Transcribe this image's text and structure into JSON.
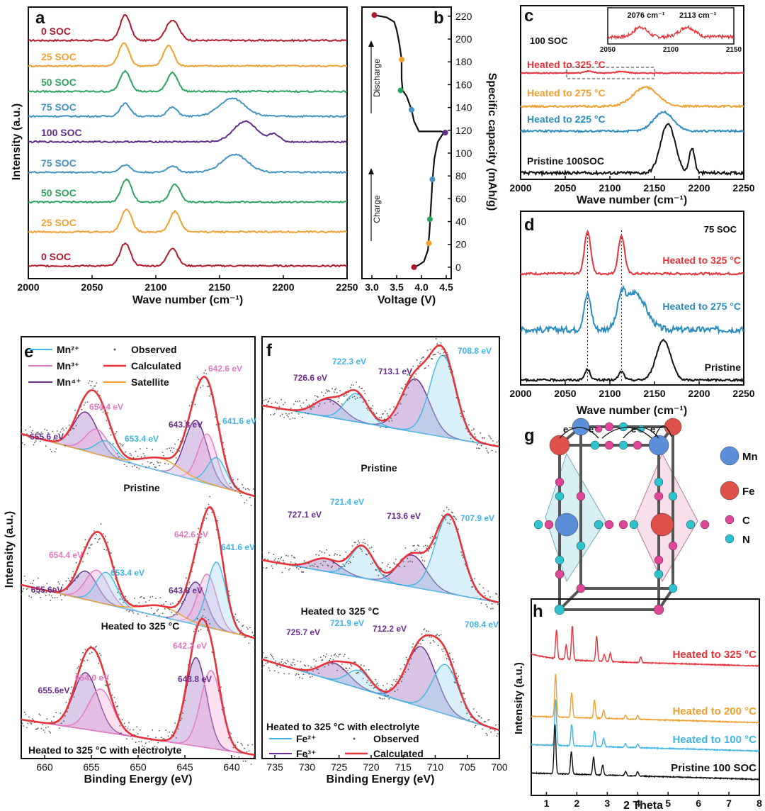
{
  "figure": {
    "panel_letters": [
      "a",
      "b",
      "c",
      "d",
      "e",
      "f",
      "g",
      "h"
    ]
  },
  "chart_data": [
    {
      "panel": "a",
      "type": "line",
      "xlabel": "Wave number (cm⁻¹)",
      "ylabel": "Intensity (a.u.)",
      "xlim": [
        2000,
        2250
      ],
      "xticks": [
        "2000",
        "2050",
        "2100",
        "2150",
        "2200",
        "2250"
      ],
      "series": [
        {
          "name": "0 SOC",
          "color": "#b2182b",
          "peaks": [
            [
              2076,
              1.0,
              4
            ],
            [
              2113,
              0.8,
              5
            ]
          ]
        },
        {
          "name": "25 SOC",
          "color": "#f0a030",
          "peaks": [
            [
              2075,
              0.9,
              4
            ],
            [
              2110,
              0.8,
              4
            ]
          ]
        },
        {
          "name": "50 SOC",
          "color": "#2ca25f",
          "peaks": [
            [
              2076,
              0.8,
              4
            ],
            [
              2113,
              0.75,
              4
            ]
          ]
        },
        {
          "name": "75 SOC",
          "color": "#4393c3",
          "peaks": [
            [
              2076,
              0.5,
              4
            ],
            [
              2113,
              0.35,
              4
            ],
            [
              2160,
              0.7,
              10
            ]
          ]
        },
        {
          "name": "100 SOC",
          "color": "#5e2e8a",
          "peaks": [
            [
              2170,
              0.8,
              9
            ],
            [
              2193,
              0.3,
              4
            ]
          ]
        },
        {
          "name": "75 SOC",
          "color": "#4393c3",
          "peaks": [
            [
              2076,
              0.3,
              4
            ],
            [
              2113,
              0.25,
              4
            ],
            [
              2162,
              0.7,
              10
            ]
          ]
        },
        {
          "name": "50 SOC",
          "color": "#2ca25f",
          "peaks": [
            [
              2077,
              0.9,
              4
            ],
            [
              2115,
              0.7,
              4
            ]
          ]
        },
        {
          "name": "25 SOC",
          "color": "#f0a030",
          "peaks": [
            [
              2077,
              0.9,
              4
            ],
            [
              2115,
              0.8,
              4
            ]
          ]
        },
        {
          "name": "0 SOC",
          "color": "#b2182b",
          "peaks": [
            [
              2076,
              0.9,
              4
            ],
            [
              2113,
              0.7,
              4
            ]
          ]
        }
      ]
    },
    {
      "panel": "b",
      "type": "line",
      "xlabel": "Voltage (V)",
      "ylabel": "Specific capacity (mAh/g)",
      "xlim": [
        2.8,
        4.6
      ],
      "ylim": [
        -10,
        228
      ],
      "xticks": [
        "3.0",
        "3.5",
        "4.0",
        "4.5"
      ],
      "yticks": [
        "0",
        "20",
        "40",
        "60",
        "80",
        "100",
        "120",
        "140",
        "160",
        "180",
        "200",
        "220"
      ],
      "annotations": [
        "Discharge",
        "Charge"
      ],
      "curve": [
        [
          3.85,
          0
        ],
        [
          3.95,
          2
        ],
        [
          4.05,
          5
        ],
        [
          4.13,
          15
        ],
        [
          4.16,
          30
        ],
        [
          4.18,
          45
        ],
        [
          4.2,
          60
        ],
        [
          4.22,
          75
        ],
        [
          4.26,
          95
        ],
        [
          4.33,
          110
        ],
        [
          4.45,
          118
        ],
        [
          4.4,
          119
        ],
        [
          4.2,
          119
        ],
        [
          3.95,
          119
        ],
        [
          3.85,
          128
        ],
        [
          3.8,
          138
        ],
        [
          3.7,
          150
        ],
        [
          3.62,
          155
        ],
        [
          3.6,
          165
        ],
        [
          3.6,
          182
        ],
        [
          3.55,
          197
        ],
        [
          3.5,
          208
        ],
        [
          3.45,
          215
        ],
        [
          3.3,
          219
        ],
        [
          3.05,
          221
        ]
      ],
      "markers": [
        {
          "v": 3.85,
          "c": 0,
          "color": "#b2182b"
        },
        {
          "v": 4.15,
          "c": 21,
          "color": "#f0a030"
        },
        {
          "v": 4.17,
          "c": 42,
          "color": "#2ca25f"
        },
        {
          "v": 4.22,
          "c": 77,
          "color": "#4393c3"
        },
        {
          "v": 4.48,
          "c": 118,
          "color": "#5e2e8a"
        },
        {
          "v": 3.8,
          "c": 138,
          "color": "#4393c3"
        },
        {
          "v": 3.58,
          "c": 155,
          "color": "#2ca25f"
        },
        {
          "v": 3.6,
          "c": 182,
          "color": "#f0a030"
        },
        {
          "v": 3.05,
          "c": 221,
          "color": "#b2182b"
        }
      ]
    },
    {
      "panel": "c",
      "type": "line",
      "title": "100 SOC",
      "xlabel": "Wave number (cm⁻¹)",
      "xlim": [
        2000,
        2250
      ],
      "xticks": [
        "2000",
        "2050",
        "2100",
        "2150",
        "2200",
        "2250"
      ],
      "series": [
        {
          "name": "Heated to 325 °C",
          "color": "#e6333a",
          "peaks": [
            [
              2076,
              0.12,
              5
            ],
            [
              2113,
              0.1,
              6
            ]
          ]
        },
        {
          "name": "Heated to 275 °C",
          "color": "#f0a030",
          "peaks": [
            [
              2140,
              0.6,
              14
            ]
          ]
        },
        {
          "name": "Heated to 225 °C",
          "color": "#2b8cbe",
          "peaks": [
            [
              2160,
              0.6,
              11
            ]
          ]
        },
        {
          "name": "Pristine 100SOC",
          "color": "#111111",
          "peaks": [
            [
              2165,
              1.0,
              8
            ],
            [
              2192,
              0.5,
              3
            ]
          ]
        }
      ],
      "inset": {
        "xticks": [
          "2050",
          "2100",
          "2150"
        ],
        "labels": [
          "2076 cm⁻¹",
          "2113 cm⁻¹"
        ]
      }
    },
    {
      "panel": "d",
      "type": "line",
      "title": "75 SOC",
      "xlabel": "Wave number (cm⁻¹)",
      "xlim": [
        2000,
        2250
      ],
      "xticks": [
        "2000",
        "2050",
        "2100",
        "2150",
        "2200",
        "2250"
      ],
      "series": [
        {
          "name": "Heated to 325 °C",
          "color": "#e6333a",
          "peaks": [
            [
              2075,
              1.0,
              3.5
            ],
            [
              2113,
              0.9,
              3.5
            ]
          ]
        },
        {
          "name": "Heated to 275 °C",
          "color": "#2b8cbe",
          "peaks": [
            [
              2075,
              0.7,
              4
            ],
            [
              2113,
              0.45,
              4
            ],
            [
              2128,
              0.75,
              12
            ]
          ]
        },
        {
          "name": "Pristine",
          "color": "#111111",
          "peaks": [
            [
              2075,
              0.25,
              3
            ],
            [
              2113,
              0.2,
              3
            ],
            [
              2160,
              0.95,
              8
            ]
          ]
        }
      ]
    },
    {
      "panel": "e",
      "type": "line",
      "xlabel": "Binding Energy (eV)",
      "ylabel": "Intensity (a.u.)",
      "xlim": [
        662.5,
        637.5
      ],
      "xticks": [
        "660",
        "655",
        "650",
        "645",
        "640"
      ],
      "legend": [
        "Mn²⁺",
        "Mn³⁺",
        "Mn⁴⁺",
        "Observed",
        "Calculated",
        "Satellite"
      ],
      "spectra": [
        {
          "name": "Pristine",
          "labels": [
            "655.6 eV",
            "654.4 eV",
            "653.4 eV",
            "643.8 eV",
            "642.6 eV",
            "641.6 eV"
          ]
        },
        {
          "name": "Heated to 325 °C",
          "labels": [
            "655.6eV",
            "654.4 eV",
            "653.4 eV",
            "643.8 eV",
            "642.6 eV",
            "641.6 eV"
          ]
        },
        {
          "name": "Heated to 325 °C with electrolyte",
          "labels": [
            "655.6eV",
            "654.0 eV",
            "643.8 eV",
            "642.2 eV"
          ]
        }
      ]
    },
    {
      "panel": "f",
      "type": "line",
      "xlabel": "Binding Energy (eV)",
      "xlim": [
        737,
        700
      ],
      "xticks": [
        "735",
        "730",
        "725",
        "720",
        "715",
        "710",
        "705",
        "700"
      ],
      "legend": [
        "Fe²⁺",
        "Fe³⁺",
        "Observed",
        "Calculated"
      ],
      "legend_title": "Heated to 325 °C with electrolyte",
      "spectra": [
        {
          "name": "Pristine",
          "labels": [
            "726.6 eV",
            "722.3 eV",
            "713.1 eV",
            "708.8 eV"
          ]
        },
        {
          "name": "Heated to 325 °C",
          "labels": [
            "727.1 eV",
            "721.4 eV",
            "713.6 eV",
            "707.9 eV"
          ]
        },
        {
          "name": "",
          "labels": [
            "725.7 eV",
            "721.9 eV",
            "712.2 eV",
            "708.4 eV"
          ]
        }
      ]
    },
    {
      "panel": "h",
      "type": "line",
      "xlabel": "2 Theta",
      "ylabel": "Intensity (a.u.)",
      "xlim": [
        0.5,
        8
      ],
      "xticks": [
        "1",
        "2",
        "3",
        "4",
        "5",
        "6",
        "7",
        "8"
      ],
      "series": [
        {
          "name": "Heated to 325 °C",
          "color": "#e6333a"
        },
        {
          "name": "Heated to 200 °C",
          "color": "#f0a030"
        },
        {
          "name": "Heated to 100 °C",
          "color": "#41b6e6"
        },
        {
          "name": "Pristine 100 SOC",
          "color": "#111111"
        }
      ]
    }
  ],
  "structure_g": {
    "legend": [
      "Mn",
      "Fe",
      "C",
      "N"
    ],
    "electron_label": "e⁻",
    "colors": {
      "Mn": "#5b8fd9",
      "Fe": "#e0504a",
      "C": "#e0459a",
      "N": "#2ec4cf"
    }
  }
}
